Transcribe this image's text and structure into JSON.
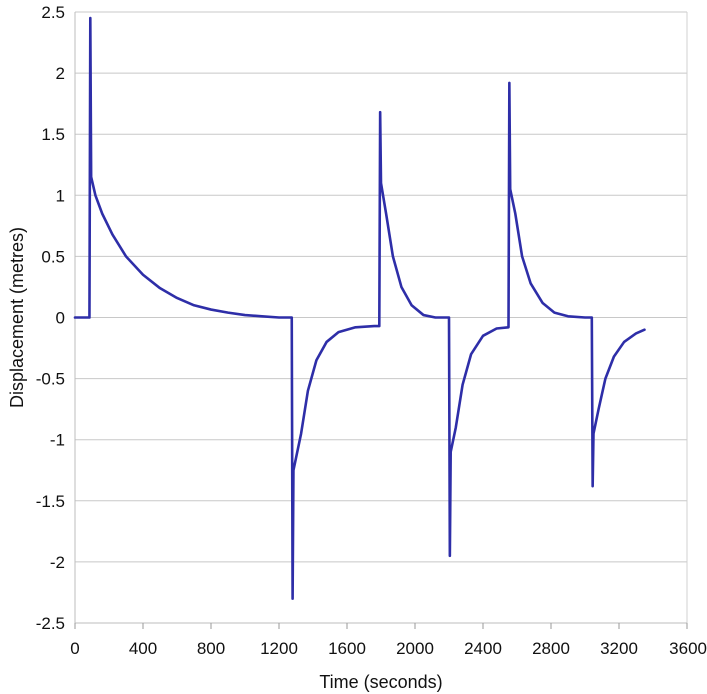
{
  "chart_data": {
    "type": "line",
    "title": "",
    "xlabel": "Time (seconds)",
    "ylabel": "Displacement (metres)",
    "xlim": [
      0,
      3600
    ],
    "ylim": [
      -2.5,
      2.5
    ],
    "grid": true,
    "xticks": [
      0,
      400,
      800,
      1200,
      1600,
      2000,
      2400,
      2800,
      3200,
      3600
    ],
    "yticks": [
      2.5,
      2,
      1.5,
      1,
      0.5,
      0,
      -0.5,
      -1,
      -1.5,
      -2,
      -2.5
    ],
    "xtick_labels": [
      "0",
      "400",
      "800",
      "1200",
      "1600",
      "2000",
      "2400",
      "2800",
      "3200",
      "3600"
    ],
    "ytick_labels": [
      "2.5",
      "2",
      "1.5",
      "1",
      "0.5",
      "0",
      "-0.5",
      "-1",
      "-1.5",
      "-2",
      "-2.5"
    ],
    "line_color": "#2e2ea8",
    "series": [
      {
        "points": [
          [
            0,
            0
          ],
          [
            85,
            0
          ],
          [
            90,
            2.45
          ],
          [
            95,
            1.15
          ],
          [
            120,
            1.0
          ],
          [
            160,
            0.85
          ],
          [
            220,
            0.68
          ],
          [
            300,
            0.5
          ],
          [
            400,
            0.35
          ],
          [
            500,
            0.24
          ],
          [
            600,
            0.16
          ],
          [
            700,
            0.1
          ],
          [
            800,
            0.065
          ],
          [
            900,
            0.04
          ],
          [
            1000,
            0.02
          ],
          [
            1100,
            0.01
          ],
          [
            1200,
            0.0
          ],
          [
            1275,
            0.0
          ],
          [
            1280,
            -2.3
          ],
          [
            1285,
            -1.25
          ],
          [
            1300,
            -1.15
          ],
          [
            1330,
            -0.95
          ],
          [
            1370,
            -0.6
          ],
          [
            1420,
            -0.35
          ],
          [
            1480,
            -0.2
          ],
          [
            1550,
            -0.12
          ],
          [
            1650,
            -0.08
          ],
          [
            1760,
            -0.07
          ],
          [
            1790,
            -0.07
          ],
          [
            1795,
            1.68
          ],
          [
            1800,
            1.1
          ],
          [
            1830,
            0.85
          ],
          [
            1870,
            0.5
          ],
          [
            1920,
            0.25
          ],
          [
            1980,
            0.1
          ],
          [
            2050,
            0.02
          ],
          [
            2120,
            0.0
          ],
          [
            2200,
            0.0
          ],
          [
            2205,
            -1.95
          ],
          [
            2210,
            -1.1
          ],
          [
            2240,
            -0.9
          ],
          [
            2280,
            -0.55
          ],
          [
            2330,
            -0.3
          ],
          [
            2400,
            -0.15
          ],
          [
            2480,
            -0.09
          ],
          [
            2550,
            -0.08
          ],
          [
            2555,
            1.92
          ],
          [
            2560,
            1.05
          ],
          [
            2590,
            0.85
          ],
          [
            2630,
            0.5
          ],
          [
            2680,
            0.28
          ],
          [
            2750,
            0.12
          ],
          [
            2820,
            0.04
          ],
          [
            2900,
            0.01
          ],
          [
            3000,
            0.0
          ],
          [
            3040,
            0.0
          ],
          [
            3045,
            -1.38
          ],
          [
            3050,
            -0.95
          ],
          [
            3080,
            -0.75
          ],
          [
            3120,
            -0.5
          ],
          [
            3170,
            -0.32
          ],
          [
            3230,
            -0.2
          ],
          [
            3300,
            -0.13
          ],
          [
            3350,
            -0.1
          ]
        ]
      }
    ]
  }
}
